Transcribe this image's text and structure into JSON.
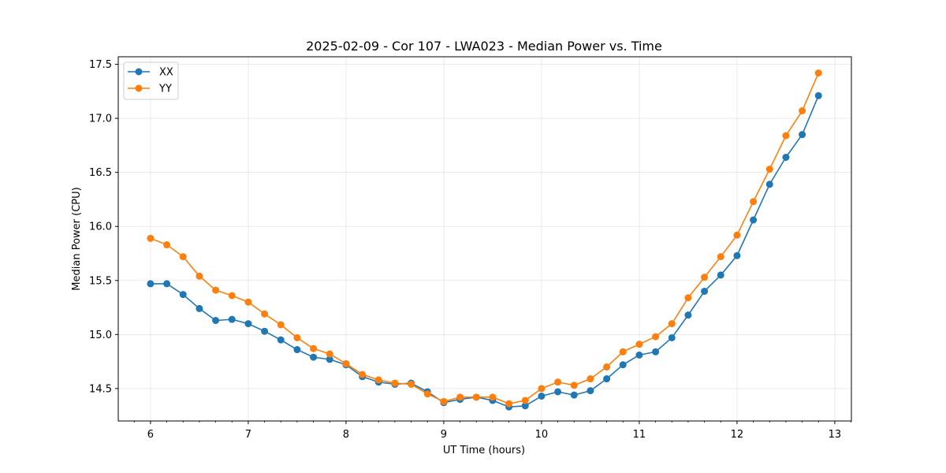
{
  "chart_data": {
    "type": "line",
    "title": "2025-02-09 - Cor 107 - LWA023 - Median Power vs. Time",
    "xlabel": "UT Time (hours)",
    "ylabel": "Median Power (CPU)",
    "xlim": [
      5.67,
      13.17
    ],
    "ylim": [
      14.2,
      17.57
    ],
    "xticks": [
      6,
      7,
      8,
      9,
      10,
      11,
      12,
      13
    ],
    "xtick_labels": [
      "6",
      "7",
      "8",
      "9",
      "10",
      "11",
      "12",
      "13"
    ],
    "yticks": [
      14.5,
      15.0,
      15.5,
      16.0,
      16.5,
      17.0,
      17.5
    ],
    "ytick_labels": [
      "14.5",
      "15.0",
      "15.5",
      "16.0",
      "16.5",
      "17.0",
      "17.5"
    ],
    "grid": true,
    "legend_position": "top-left",
    "x": [
      6.0,
      6.1667,
      6.3333,
      6.5,
      6.6667,
      6.8333,
      7.0,
      7.1667,
      7.3333,
      7.5,
      7.6667,
      7.8333,
      8.0,
      8.1667,
      8.3333,
      8.5,
      8.6667,
      8.8333,
      9.0,
      9.1667,
      9.3333,
      9.5,
      9.6667,
      9.8333,
      10.0,
      10.1667,
      10.3333,
      10.5,
      10.6667,
      10.8333,
      11.0,
      11.1667,
      11.3333,
      11.5,
      11.6667,
      11.8333,
      12.0,
      12.1667,
      12.3333,
      12.5,
      12.6667,
      12.8333
    ],
    "series": [
      {
        "name": "XX",
        "color": "#1f77b4",
        "values": [
          15.47,
          15.47,
          15.37,
          15.24,
          15.13,
          15.14,
          15.1,
          15.03,
          14.95,
          14.86,
          14.79,
          14.77,
          14.72,
          14.61,
          14.56,
          14.54,
          14.55,
          14.47,
          14.37,
          14.4,
          14.42,
          14.39,
          14.33,
          14.34,
          14.43,
          14.47,
          14.44,
          14.48,
          14.59,
          14.72,
          14.81,
          14.84,
          14.97,
          15.18,
          15.4,
          15.55,
          15.73,
          16.06,
          16.39,
          16.64,
          16.85,
          17.21
        ]
      },
      {
        "name": "YY",
        "color": "#ff7f0e",
        "values": [
          15.89,
          15.83,
          15.72,
          15.54,
          15.41,
          15.36,
          15.3,
          15.19,
          15.09,
          14.97,
          14.87,
          14.82,
          14.73,
          14.63,
          14.58,
          14.55,
          14.54,
          14.45,
          14.38,
          14.42,
          14.42,
          14.42,
          14.36,
          14.39,
          14.5,
          14.56,
          14.53,
          14.59,
          14.7,
          14.84,
          14.91,
          14.98,
          15.1,
          15.34,
          15.53,
          15.72,
          15.92,
          16.23,
          16.53,
          16.84,
          17.07,
          17.42
        ]
      }
    ]
  }
}
